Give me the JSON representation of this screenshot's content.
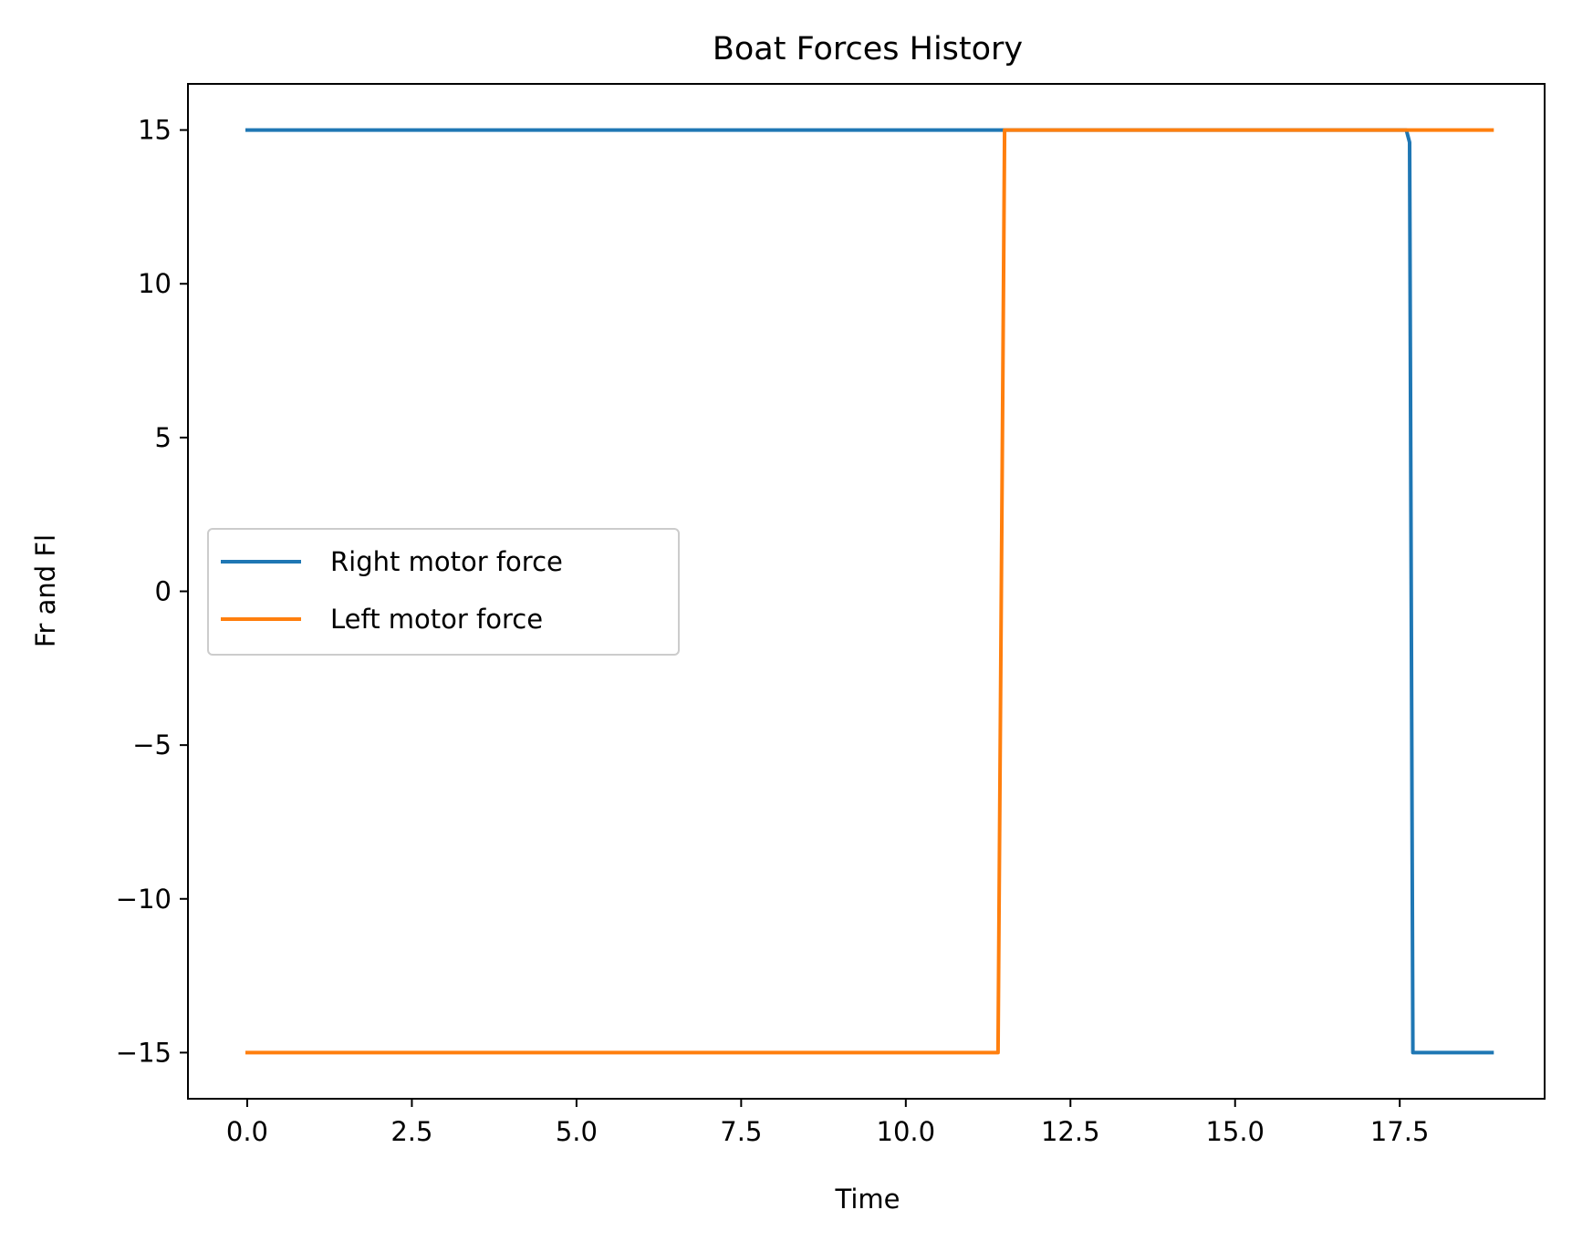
{
  "chart_data": {
    "type": "line",
    "title": "Boat Forces History",
    "xlabel": "Time",
    "ylabel": "Fr and Fl",
    "xlim": [
      -0.9,
      19.7
    ],
    "ylim": [
      -16.5,
      16.5
    ],
    "xticks": [
      0.0,
      2.5,
      5.0,
      7.5,
      10.0,
      12.5,
      15.0,
      17.5
    ],
    "xtick_labels": [
      "0.0",
      "2.5",
      "5.0",
      "7.5",
      "10.0",
      "12.5",
      "15.0",
      "17.5"
    ],
    "yticks": [
      -15,
      -10,
      -5,
      0,
      5,
      10,
      15
    ],
    "ytick_labels": [
      "−15",
      "−10",
      "−5",
      "0",
      "5",
      "10",
      "15"
    ],
    "grid": false,
    "legend_position": "center-left",
    "series": [
      {
        "name": "Right motor force",
        "color": "#1f77b4",
        "x": [
          0.0,
          17.6,
          17.65,
          17.7,
          17.75,
          18.9
        ],
        "y": [
          15,
          15,
          14.6,
          -15,
          -15,
          -15
        ]
      },
      {
        "name": "Left motor force",
        "color": "#ff7f0e",
        "x": [
          0.0,
          11.4,
          11.5,
          18.9
        ],
        "y": [
          -15,
          -15,
          15,
          15
        ]
      }
    ]
  }
}
